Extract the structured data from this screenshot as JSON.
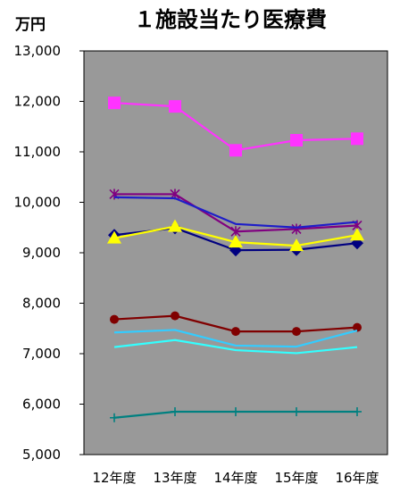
{
  "chart_data": {
    "type": "line",
    "title": "１施設当たり医療費",
    "ylabel": "万円",
    "xlabel": "",
    "categories": [
      "12年度",
      "13年度",
      "14年度",
      "15年度",
      "16年度"
    ],
    "ylim": [
      5000,
      13000
    ],
    "yticks": [
      5000,
      6000,
      7000,
      8000,
      9000,
      10000,
      11000,
      12000,
      13000
    ],
    "ytick_labels": [
      "5,000",
      "6,000",
      "7,000",
      "8,000",
      "9,000",
      "10,000",
      "11,000",
      "12,000",
      "13,000"
    ],
    "grid": false,
    "plot_background": "#999999",
    "series": [
      {
        "color": "#ff33ff",
        "marker": "square",
        "values": [
          11970,
          11900,
          11030,
          11230,
          11260
        ]
      },
      {
        "color": "#800080",
        "marker": "star",
        "values": [
          10160,
          10160,
          9420,
          9470,
          9540
        ]
      },
      {
        "color": "#1e1ec8",
        "marker": "none",
        "values": [
          10100,
          10080,
          9570,
          9500,
          9610
        ]
      },
      {
        "color": "#000080",
        "marker": "diamond",
        "values": [
          9350,
          9490,
          9050,
          9060,
          9190
        ]
      },
      {
        "color": "#ffff00",
        "marker": "triangle",
        "values": [
          9290,
          9520,
          9210,
          9140,
          9350
        ]
      },
      {
        "color": "#800000",
        "marker": "circle",
        "values": [
          7680,
          7750,
          7440,
          7440,
          7520
        ]
      },
      {
        "color": "#33ccff",
        "marker": "none",
        "values": [
          7420,
          7470,
          7160,
          7140,
          7460
        ]
      },
      {
        "color": "#33ffff",
        "marker": "none",
        "values": [
          7130,
          7270,
          7070,
          7010,
          7130
        ]
      },
      {
        "color": "#008080",
        "marker": "plus",
        "values": [
          5730,
          5850,
          5850,
          5850,
          5850
        ]
      }
    ]
  }
}
